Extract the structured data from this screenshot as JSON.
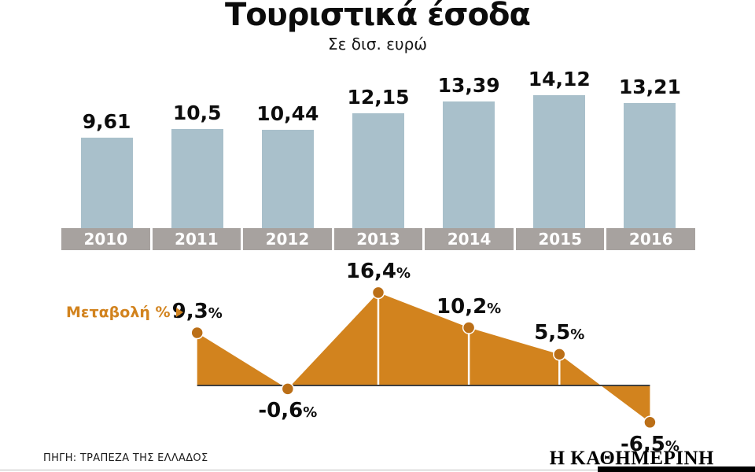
{
  "title": "Τουριστικά έσοδα",
  "subtitle": "Σε δισ. ευρώ",
  "change_label": "Μεταβολή %",
  "source": "ΠΗΓΗ: ΤΡΑΠΕΖΑ ΤΗΣ ΕΛΛΑΔΟΣ",
  "brand": "Η ΚΑΘΗΜΕΡΙΝΗ",
  "colors": {
    "bar": "#a9c0cb",
    "band": "#a7a29f",
    "area": "#d2831e",
    "dot": "#bb6f17",
    "baseline": "#3f3f3f",
    "text": "#111111"
  },
  "chart_data": [
    {
      "type": "bar",
      "title": "Τουριστικά έσοδα",
      "subtitle": "Σε δισ. ευρώ",
      "categories": [
        "2010",
        "2011",
        "2012",
        "2013",
        "2014",
        "2015",
        "2016"
      ],
      "values": [
        9.61,
        10.5,
        10.44,
        12.15,
        13.39,
        14.12,
        13.21
      ],
      "value_labels": [
        "9,61",
        "10,5",
        "10,44",
        "12,15",
        "13,39",
        "14,12",
        "13,21"
      ],
      "xlabel": "",
      "ylabel": "δισ. ευρώ",
      "ylim": [
        0,
        15
      ],
      "grid": false,
      "legend": "none"
    },
    {
      "type": "area",
      "title": "Μεταβολή %",
      "categories": [
        "2011",
        "2012",
        "2013",
        "2014",
        "2015",
        "2016"
      ],
      "values": [
        9.3,
        -0.6,
        16.4,
        10.2,
        5.5,
        -6.5
      ],
      "value_labels": [
        "9,3",
        "-0,6",
        "16,4",
        "10,2",
        "5,5",
        "-6,5"
      ],
      "unit": "%",
      "ylim": [
        -8,
        18
      ],
      "grid": false,
      "legend": "left-label"
    }
  ]
}
